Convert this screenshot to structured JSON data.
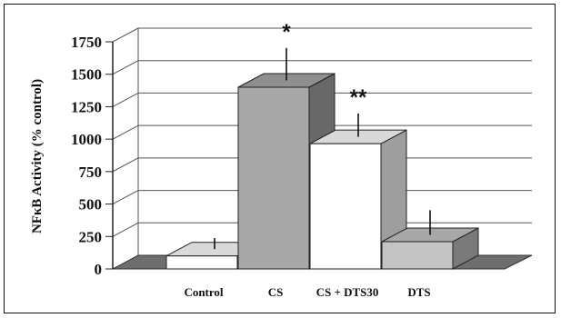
{
  "chart_data": {
    "type": "bar",
    "style": "3d-bar",
    "title": "",
    "xlabel": "",
    "ylabel": "NFκB Activity (% control)",
    "ylim": [
      0,
      1750
    ],
    "yticks": [
      "0",
      "250",
      "500",
      "750",
      "1000",
      "1250",
      "1500",
      "1750"
    ],
    "grid": true,
    "legend": "none",
    "categories": [
      "Control",
      "CS",
      "CS + DTS30",
      "DTS"
    ],
    "values": [
      100,
      1400,
      965,
      210
    ],
    "error_upper": [
      185,
      1650,
      1145,
      400
    ],
    "annotations": [
      "",
      "*",
      "**",
      ""
    ],
    "bar_colors": [
      "#ffffff",
      "#a8a8a8",
      "#ffffff",
      "#c4c4c4"
    ]
  }
}
